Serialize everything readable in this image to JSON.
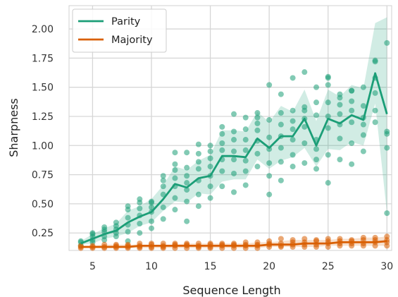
{
  "chart_data": {
    "type": "line",
    "title": "",
    "xlabel": "Sequence Length",
    "ylabel": "Sharpness",
    "xlim": [
      3,
      30.4
    ],
    "ylim": [
      0.1,
      2.2
    ],
    "xticks": [
      5,
      10,
      15,
      20,
      25,
      30
    ],
    "yticks": [
      0.25,
      0.5,
      0.75,
      1.0,
      1.25,
      1.5,
      1.75,
      2.0
    ],
    "xtick_labels": [
      "5",
      "10",
      "15",
      "20",
      "25",
      "30"
    ],
    "ytick_labels": [
      "0.25",
      "0.50",
      "0.75",
      "1.00",
      "1.25",
      "1.50",
      "1.75",
      "2.00"
    ],
    "grid": true,
    "legend_position": "top-left",
    "x": [
      4,
      5,
      6,
      7,
      8,
      9,
      10,
      11,
      12,
      13,
      14,
      15,
      16,
      17,
      18,
      19,
      20,
      21,
      22,
      23,
      24,
      25,
      26,
      27,
      28,
      29,
      30
    ],
    "series": [
      {
        "name": "Parity",
        "color": "#1b9e77",
        "mean": [
          0.16,
          0.2,
          0.24,
          0.27,
          0.34,
          0.39,
          0.43,
          0.54,
          0.67,
          0.64,
          0.72,
          0.74,
          0.91,
          0.91,
          0.9,
          1.06,
          0.98,
          1.08,
          1.08,
          1.23,
          1.0,
          1.23,
          1.19,
          1.26,
          1.22,
          1.62,
          1.27
        ],
        "ci_low": [
          0.15,
          0.16,
          0.2,
          0.22,
          0.25,
          0.31,
          0.34,
          0.44,
          0.52,
          0.51,
          0.59,
          0.58,
          0.69,
          0.71,
          0.71,
          0.88,
          0.8,
          0.87,
          0.9,
          0.98,
          0.82,
          0.97,
          0.96,
          1.03,
          1.0,
          1.36,
          0.42
        ],
        "ci_high": [
          0.18,
          0.24,
          0.29,
          0.33,
          0.44,
          0.48,
          0.54,
          0.66,
          0.82,
          0.79,
          0.87,
          0.92,
          1.13,
          1.13,
          1.12,
          1.29,
          1.2,
          1.34,
          1.29,
          1.48,
          1.21,
          1.48,
          1.42,
          1.52,
          1.49,
          2.05,
          2.1
        ],
        "points": [
          [
            [
              0.14,
              0.17,
              0.18
            ]
          ],
          [
            [
              0.17,
              0.19,
              0.22,
              0.24,
              0.25
            ]
          ],
          [
            [
              0.19,
              0.22,
              0.26,
              0.28,
              0.3
            ]
          ],
          [
            [
              0.22,
              0.25,
              0.28,
              0.31,
              0.34
            ]
          ],
          [
            [
              0.18,
              0.26,
              0.32,
              0.38,
              0.45,
              0.48
            ]
          ],
          [
            [
              0.25,
              0.33,
              0.4,
              0.46,
              0.51,
              0.54
            ]
          ],
          [
            [
              0.29,
              0.35,
              0.43,
              0.47,
              0.51,
              0.52
            ]
          ],
          [
            [
              0.37,
              0.47,
              0.58,
              0.65,
              0.7,
              0.74
            ]
          ],
          [
            [
              0.45,
              0.55,
              0.65,
              0.72,
              0.79,
              0.84,
              0.94
            ]
          ],
          [
            [
              0.35,
              0.52,
              0.62,
              0.68,
              0.74,
              0.81,
              0.94
            ]
          ],
          [
            [
              0.48,
              0.58,
              0.7,
              0.8,
              0.86,
              0.93,
              1.01
            ]
          ],
          [
            [
              0.55,
              0.65,
              0.74,
              0.82,
              0.89,
              0.95,
              1.0
            ]
          ],
          [
            [
              0.65,
              0.78,
              0.88,
              0.96,
              1.02,
              1.1,
              1.16
            ]
          ],
          [
            [
              0.6,
              0.76,
              0.88,
              0.95,
              1.05,
              1.12,
              1.27
            ]
          ],
          [
            [
              0.66,
              0.78,
              0.87,
              0.96,
              1.05,
              1.14,
              1.24
            ]
          ],
          [
            [
              0.82,
              0.93,
              1.04,
              1.13,
              1.19,
              1.24,
              1.28
            ]
          ],
          [
            [
              0.58,
              0.74,
              0.85,
              0.97,
              1.07,
              1.22,
              1.52
            ]
          ],
          [
            [
              0.7,
              0.86,
              0.98,
              1.08,
              1.18,
              1.28,
              1.44
            ]
          ],
          [
            [
              0.82,
              0.92,
              1.05,
              1.14,
              1.21,
              1.3,
              1.58
            ]
          ],
          [
            [
              0.85,
              1.02,
              1.16,
              1.23,
              1.3,
              1.33,
              1.63
            ]
          ],
          [
            [
              0.8,
              0.88,
              0.97,
              1.05,
              1.26,
              1.37,
              1.5
            ]
          ],
          [
            [
              0.68,
              0.92,
              1.15,
              1.25,
              1.37,
              1.52,
              1.58,
              1.59
            ]
          ],
          [
            [
              0.88,
              1.06,
              1.18,
              1.27,
              1.35,
              1.41,
              1.44
            ]
          ],
          [
            [
              0.84,
              1.02,
              1.2,
              1.3,
              1.38,
              1.47,
              1.47
            ]
          ],
          [
            [
              0.95,
              1.09,
              1.18,
              1.24,
              1.34,
              1.5
            ]
          ],
          [
            [
              1.2,
              1.3,
              1.45,
              1.58,
              1.72,
              1.73
            ]
          ],
          [
            [
              0.42,
              0.98,
              1.1,
              1.12,
              1.88
            ]
          ]
        ]
      },
      {
        "name": "Majority",
        "color": "#d95f02",
        "mean": [
          0.13,
          0.13,
          0.13,
          0.13,
          0.13,
          0.14,
          0.14,
          0.14,
          0.14,
          0.14,
          0.14,
          0.14,
          0.14,
          0.14,
          0.14,
          0.14,
          0.15,
          0.15,
          0.15,
          0.16,
          0.16,
          0.16,
          0.17,
          0.17,
          0.17,
          0.17,
          0.18
        ],
        "ci_low": [
          0.12,
          0.12,
          0.12,
          0.12,
          0.12,
          0.12,
          0.12,
          0.12,
          0.12,
          0.12,
          0.12,
          0.12,
          0.12,
          0.12,
          0.12,
          0.12,
          0.13,
          0.13,
          0.13,
          0.13,
          0.13,
          0.14,
          0.14,
          0.14,
          0.14,
          0.14,
          0.14
        ],
        "ci_high": [
          0.14,
          0.14,
          0.15,
          0.15,
          0.15,
          0.15,
          0.15,
          0.15,
          0.15,
          0.16,
          0.16,
          0.16,
          0.16,
          0.16,
          0.16,
          0.17,
          0.17,
          0.18,
          0.19,
          0.19,
          0.19,
          0.19,
          0.2,
          0.2,
          0.21,
          0.21,
          0.22
        ],
        "points": [
          [
            [
              0.12,
              0.13,
              0.14
            ]
          ],
          [
            [
              0.12,
              0.13,
              0.14
            ]
          ],
          [
            [
              0.12,
              0.13,
              0.15
            ]
          ],
          [
            [
              0.12,
              0.13,
              0.14,
              0.15
            ]
          ],
          [
            [
              0.12,
              0.13,
              0.14,
              0.15
            ]
          ],
          [
            [
              0.12,
              0.13,
              0.14,
              0.16
            ]
          ],
          [
            [
              0.12,
              0.13,
              0.15,
              0.16
            ]
          ],
          [
            [
              0.12,
              0.13,
              0.14,
              0.16
            ]
          ],
          [
            [
              0.12,
              0.14,
              0.15,
              0.16
            ]
          ],
          [
            [
              0.12,
              0.14,
              0.15,
              0.16
            ]
          ],
          [
            [
              0.12,
              0.13,
              0.14,
              0.16
            ]
          ],
          [
            [
              0.12,
              0.13,
              0.15,
              0.16
            ]
          ],
          [
            [
              0.12,
              0.14,
              0.15,
              0.16
            ]
          ],
          [
            [
              0.12,
              0.14,
              0.15,
              0.16
            ]
          ],
          [
            [
              0.12,
              0.14,
              0.15,
              0.17
            ]
          ],
          [
            [
              0.12,
              0.14,
              0.15,
              0.17
            ]
          ],
          [
            [
              0.13,
              0.15,
              0.16,
              0.18
            ]
          ],
          [
            [
              0.13,
              0.14,
              0.16,
              0.2
            ]
          ],
          [
            [
              0.13,
              0.15,
              0.17,
              0.19
            ]
          ],
          [
            [
              0.13,
              0.15,
              0.17,
              0.2
            ]
          ],
          [
            [
              0.13,
              0.15,
              0.18,
              0.19
            ]
          ],
          [
            [
              0.13,
              0.16,
              0.18,
              0.2
            ]
          ],
          [
            [
              0.14,
              0.16,
              0.18,
              0.2
            ]
          ],
          [
            [
              0.14,
              0.16,
              0.18,
              0.19
            ]
          ],
          [
            [
              0.14,
              0.16,
              0.19,
              0.21
            ]
          ],
          [
            [
              0.14,
              0.17,
              0.19,
              0.21
            ]
          ],
          [
            [
              0.14,
              0.17,
              0.19,
              0.22
            ]
          ]
        ]
      }
    ]
  }
}
